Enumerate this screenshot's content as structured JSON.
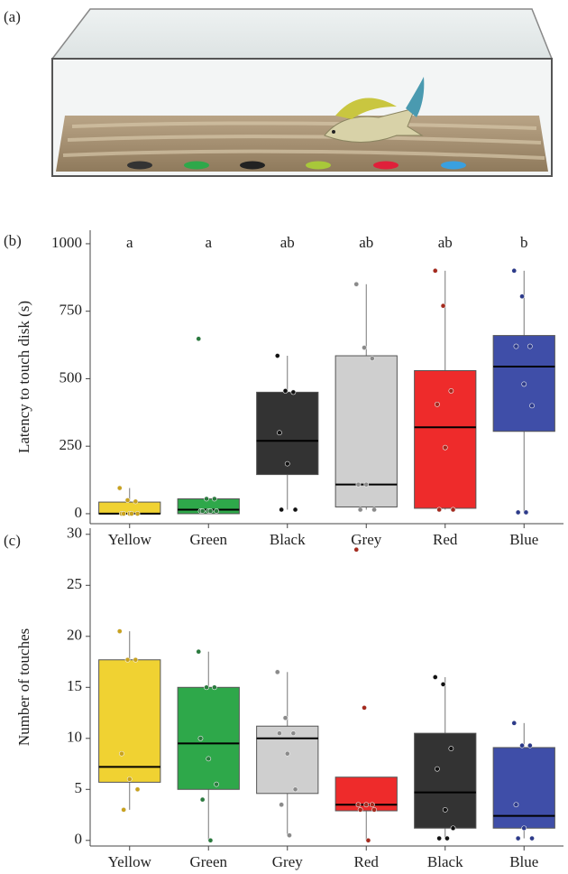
{
  "image_panel": {
    "label": "(a)"
  },
  "chart_data": [
    {
      "type": "box",
      "panel_label": "(b)",
      "y_label": "Latency to touch disk (s)",
      "ylim": [
        -37,
        1050
      ],
      "yticks": [
        0,
        250,
        500,
        750,
        1000
      ],
      "categories": [
        "Yellow",
        "Green",
        "Black",
        "Grey",
        "Red",
        "Blue"
      ],
      "letters": [
        "a",
        "a",
        "ab",
        "ab",
        "ab",
        "b"
      ],
      "boxes": [
        {
          "color": "#f0d232",
          "point_color": "#c9a21e",
          "whisker_low": 0,
          "q1": 0,
          "median": 0,
          "q3": 43,
          "whisker_high": 95,
          "points": [
            95,
            50,
            45,
            0,
            0,
            0,
            0,
            0
          ]
        },
        {
          "color": "#2ea84a",
          "point_color": "#2a7a3e",
          "whisker_low": 0,
          "q1": 0,
          "median": 15,
          "q3": 55,
          "whisker_high": 55,
          "points": [
            648,
            55,
            55,
            10,
            10,
            10,
            10,
            10
          ]
        },
        {
          "color": "#333333",
          "point_color": "#111111",
          "whisker_low": 15,
          "q1": 145,
          "median": 270,
          "q3": 450,
          "whisker_high": 585,
          "points": [
            585,
            455,
            450,
            300,
            185,
            15,
            15
          ]
        },
        {
          "color": "#cfcfcf",
          "point_color": "#8a8a8a",
          "whisker_low": 15,
          "q1": 25,
          "median": 108,
          "q3": 585,
          "whisker_high": 850,
          "points": [
            850,
            615,
            575,
            108,
            108,
            15,
            15
          ]
        },
        {
          "color": "#ee2b2b",
          "point_color": "#a52a1e",
          "whisker_low": 15,
          "q1": 20,
          "median": 320,
          "q3": 530,
          "whisker_high": 900,
          "points": [
            900,
            770,
            455,
            405,
            245,
            15,
            15
          ]
        },
        {
          "color": "#3f4ea8",
          "point_color": "#2c3a8a",
          "whisker_low": 5,
          "q1": 305,
          "median": 545,
          "q3": 660,
          "whisker_high": 900,
          "points": [
            900,
            805,
            620,
            620,
            480,
            400,
            5,
            5
          ]
        }
      ]
    },
    {
      "type": "box",
      "panel_label": "(c)",
      "y_label": "Number of touches",
      "ylim": [
        -0.55,
        30.6
      ],
      "yticks": [
        0,
        5,
        10,
        15,
        20,
        25,
        30
      ],
      "categories": [
        "Yellow",
        "Green",
        "Grey",
        "Red",
        "Black",
        "Blue"
      ],
      "boxes": [
        {
          "color": "#f0d232",
          "point_color": "#c9a21e",
          "whisker_low": 3,
          "q1": 5.7,
          "median": 7.2,
          "q3": 17.7,
          "whisker_high": 20.5,
          "points": [
            20.5,
            17.7,
            17.7,
            8.5,
            6,
            5,
            3
          ]
        },
        {
          "color": "#2ea84a",
          "point_color": "#2a7a3e",
          "whisker_low": 0,
          "q1": 5,
          "median": 9.5,
          "q3": 15,
          "whisker_high": 18.5,
          "points": [
            18.5,
            15,
            15,
            10,
            8,
            5.5,
            4,
            0
          ]
        },
        {
          "color": "#cfcfcf",
          "point_color": "#8a8a8a",
          "whisker_low": 0.5,
          "q1": 4.6,
          "median": 10,
          "q3": 11.2,
          "whisker_high": 16.5,
          "points": [
            16.5,
            12,
            10.5,
            10.5,
            8.5,
            5,
            3.5,
            0.5
          ]
        },
        {
          "color": "#ee2b2b",
          "point_color": "#a52a1e",
          "whisker_low": 0,
          "q1": 2.9,
          "median": 3.5,
          "q3": 6.2,
          "whisker_high": 6.2,
          "points": [
            28.5,
            13,
            3.5,
            3.5,
            3.5,
            3,
            3,
            0
          ]
        },
        {
          "color": "#333333",
          "point_color": "#111111",
          "whisker_low": 0.2,
          "q1": 1.2,
          "median": 4.7,
          "q3": 10.5,
          "whisker_high": 16,
          "points": [
            16,
            15.3,
            9,
            7,
            3,
            1.2,
            0.2,
            0.2
          ]
        },
        {
          "color": "#3f4ea8",
          "point_color": "#2c3a8a",
          "whisker_low": 0.2,
          "q1": 1.2,
          "median": 2.4,
          "q3": 9.1,
          "whisker_high": 11.5,
          "points": [
            11.5,
            9.3,
            9.3,
            3.5,
            1.2,
            0.2,
            0.2
          ]
        }
      ]
    }
  ]
}
